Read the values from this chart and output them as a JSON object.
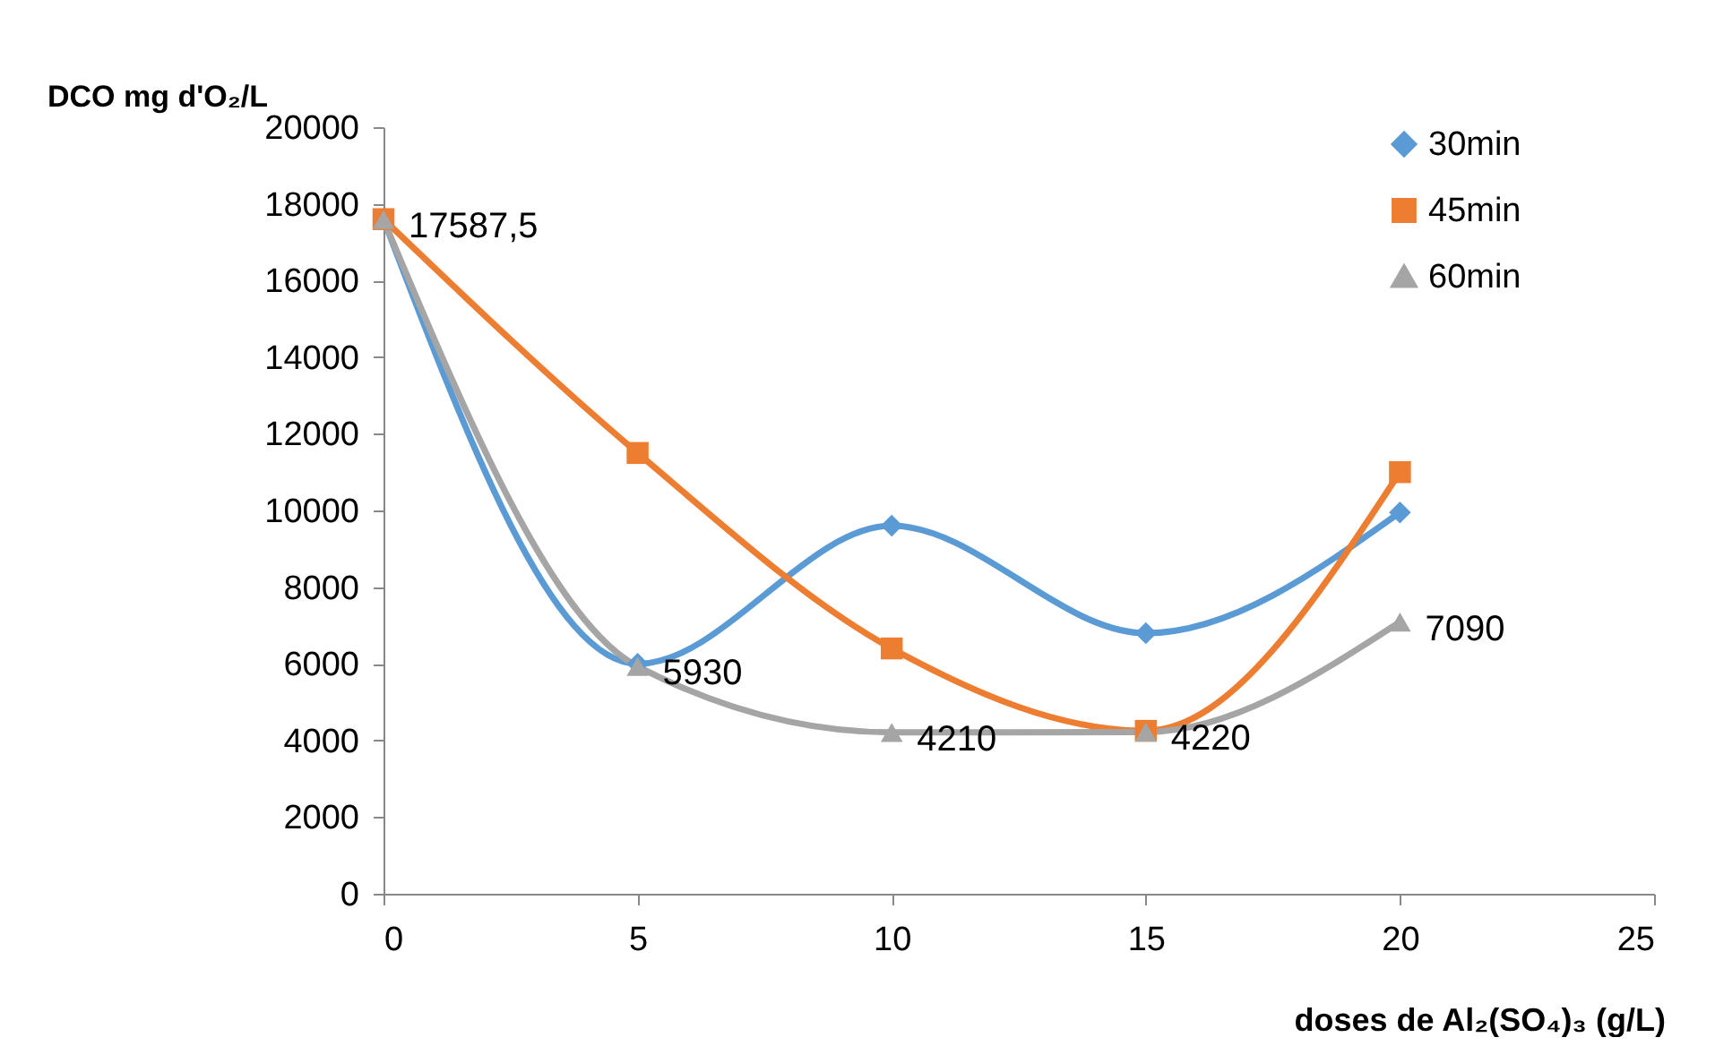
{
  "chart_data": {
    "type": "line",
    "xlabel": "doses de Al₂(SO₄)₃ (g/L)",
    "ylabel": "DCO mg d'O₂/L",
    "x": [
      0,
      5,
      10,
      15,
      20
    ],
    "xlim": [
      0,
      25
    ],
    "xticks": [
      0,
      5,
      10,
      15,
      20,
      25
    ],
    "ylim": [
      0,
      20000
    ],
    "yticks": [
      0,
      2000,
      4000,
      6000,
      8000,
      10000,
      12000,
      14000,
      16000,
      18000,
      20000
    ],
    "grid": false,
    "legend": "top right",
    "series": [
      {
        "name": "30min",
        "color": "#5b9bd5",
        "marker": "diamond",
        "values": [
          17600,
          6000,
          9600,
          6800,
          9950
        ]
      },
      {
        "name": "45min",
        "color": "#ed7d31",
        "marker": "square",
        "values": [
          17600,
          11500,
          6400,
          4250,
          11000
        ]
      },
      {
        "name": "60min",
        "color": "#a5a5a5",
        "marker": "triangle",
        "values": [
          17587.5,
          5930,
          4210,
          4220,
          7090
        ],
        "value_labels": [
          "17587,5",
          "5930",
          "4210",
          "4220",
          "7090"
        ]
      }
    ]
  }
}
